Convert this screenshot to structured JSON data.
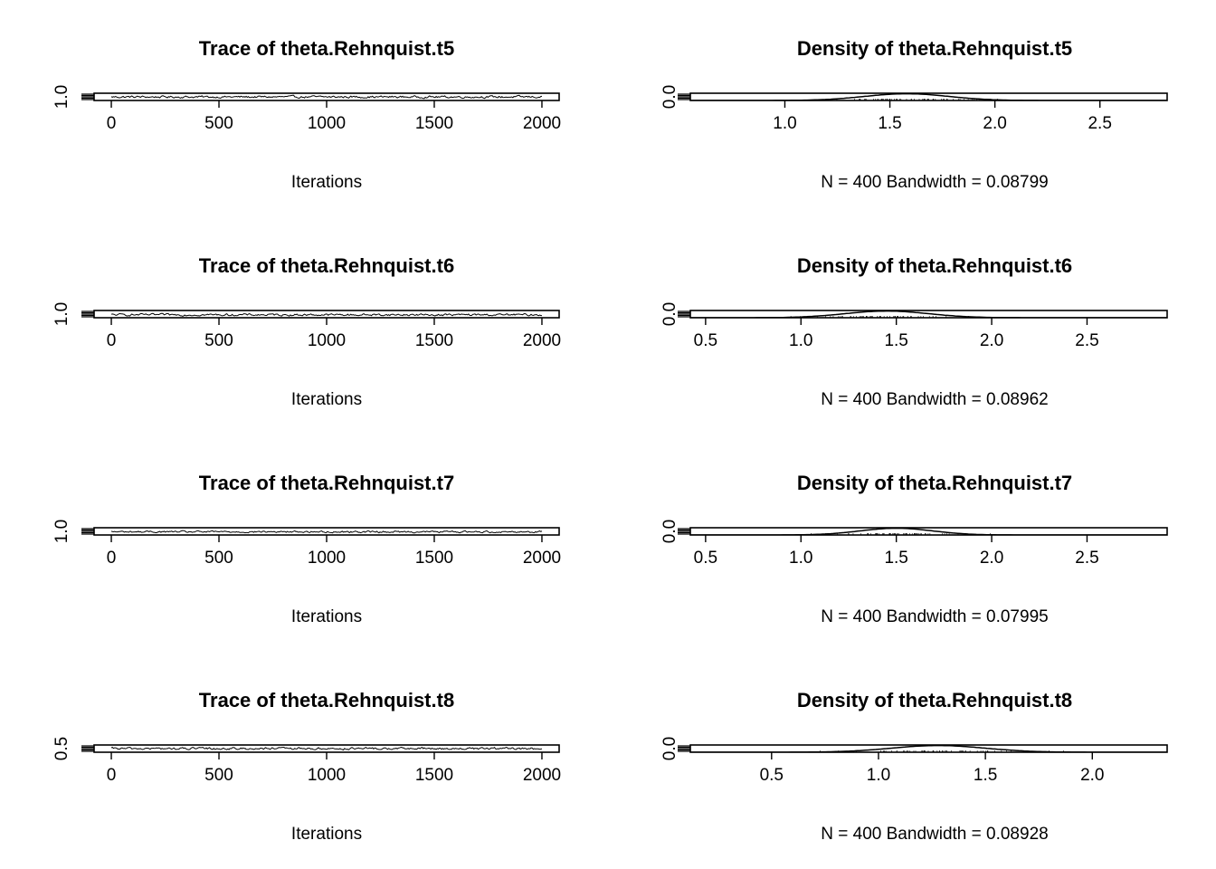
{
  "colors": {
    "line": "#000000",
    "background": "#ffffff"
  },
  "chart_data": [
    {
      "type": "line",
      "title": "Trace of theta.Rehnquist.t5",
      "xlabel": "Iterations",
      "xlim": [
        -80,
        2080
      ],
      "ylim": [
        0.55,
        2.65
      ],
      "xticks": [
        0,
        500,
        1000,
        1500,
        2000
      ],
      "yticks": [
        1.0
      ],
      "series": [
        {
          "x_start": 0,
          "x_end": 2000,
          "n": 400,
          "center": 1.58,
          "spread": 0.25
        }
      ]
    },
    {
      "type": "line",
      "title": "Density of theta.Rehnquist.t5",
      "xlabel": "N = 400   Bandwidth = 0.08799",
      "xlim": [
        0.55,
        2.82
      ],
      "ylim": [
        0.0,
        2.1
      ],
      "xticks": [
        1.0,
        1.5,
        2.0,
        2.5
      ],
      "yticks": [
        0.0
      ],
      "series": [
        {
          "mean": 1.58,
          "sd": 0.2,
          "peak": 1.95
        }
      ]
    },
    {
      "type": "line",
      "title": "Trace of theta.Rehnquist.t6",
      "xlabel": "Iterations",
      "xlim": [
        -80,
        2080
      ],
      "ylim": [
        0.45,
        2.85
      ],
      "xticks": [
        0,
        500,
        1000,
        1500,
        2000
      ],
      "yticks": [
        1.0
      ],
      "series": [
        {
          "x_start": 0,
          "x_end": 2000,
          "n": 400,
          "center": 1.42,
          "spread": 0.28
        }
      ]
    },
    {
      "type": "line",
      "title": "Density of theta.Rehnquist.t6",
      "xlabel": "N = 400   Bandwidth = 0.08962",
      "xlim": [
        0.42,
        2.92
      ],
      "ylim": [
        0.0,
        1.9
      ],
      "xticks": [
        0.5,
        1.0,
        1.5,
        2.0,
        2.5
      ],
      "yticks": [
        0.0
      ],
      "series": [
        {
          "mean": 1.45,
          "sd": 0.22,
          "peak": 1.75
        }
      ]
    },
    {
      "type": "line",
      "title": "Trace of theta.Rehnquist.t7",
      "xlabel": "Iterations",
      "xlim": [
        -80,
        2080
      ],
      "ylim": [
        0.45,
        2.85
      ],
      "xticks": [
        0,
        500,
        1000,
        1500,
        2000
      ],
      "yticks": [
        1.0
      ],
      "series": [
        {
          "x_start": 0,
          "x_end": 2000,
          "n": 400,
          "center": 1.5,
          "spread": 0.24
        }
      ]
    },
    {
      "type": "line",
      "title": "Density of theta.Rehnquist.t7",
      "xlabel": "N = 400   Bandwidth = 0.07995",
      "xlim": [
        0.42,
        2.92
      ],
      "ylim": [
        0.0,
        2.2
      ],
      "xticks": [
        0.5,
        1.0,
        1.5,
        2.0,
        2.5
      ],
      "yticks": [
        0.0
      ],
      "series": [
        {
          "mean": 1.5,
          "sd": 0.19,
          "peak": 2.05
        }
      ]
    },
    {
      "type": "line",
      "title": "Trace of theta.Rehnquist.t8",
      "xlabel": "Iterations",
      "xlim": [
        -80,
        2080
      ],
      "ylim": [
        0.15,
        2.35
      ],
      "xticks": [
        0,
        500,
        1000,
        1500,
        2000
      ],
      "yticks": [
        0.5
      ],
      "series": [
        {
          "x_start": 0,
          "x_end": 2000,
          "n": 400,
          "center": 1.25,
          "spread": 0.27
        }
      ]
    },
    {
      "type": "line",
      "title": "Density of theta.Rehnquist.t8",
      "xlabel": "N = 400   Bandwidth = 0.08928",
      "xlim": [
        0.12,
        2.35
      ],
      "ylim": [
        0.0,
        1.95
      ],
      "xticks": [
        0.5,
        1.0,
        1.5,
        2.0
      ],
      "yticks": [
        0.0
      ],
      "series": [
        {
          "mean": 1.28,
          "sd": 0.22,
          "peak": 1.8
        }
      ]
    }
  ]
}
